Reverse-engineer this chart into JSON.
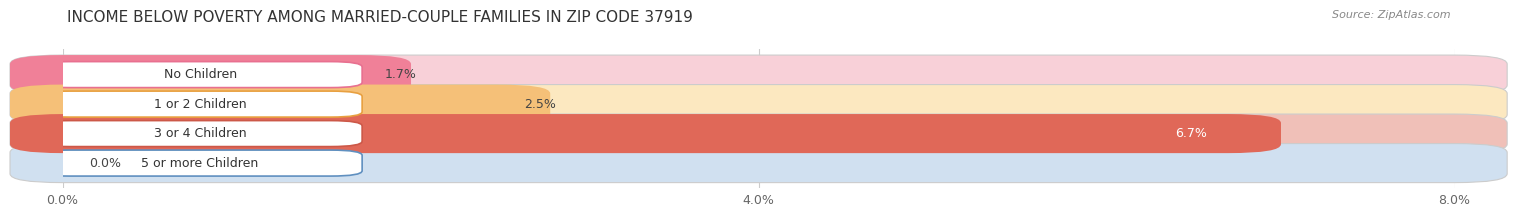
{
  "title": "INCOME BELOW POVERTY AMONG MARRIED-COUPLE FAMILIES IN ZIP CODE 37919",
  "source": "Source: ZipAtlas.com",
  "categories": [
    "No Children",
    "1 or 2 Children",
    "3 or 4 Children",
    "5 or more Children"
  ],
  "values": [
    1.7,
    2.5,
    6.7,
    0.0
  ],
  "bar_colors": [
    "#f08098",
    "#f5c078",
    "#e06858",
    "#98b8d8"
  ],
  "bar_bg_colors": [
    "#f8d0d8",
    "#fce8c0",
    "#f0c0b8",
    "#d0e0f0"
  ],
  "value_text_colors": [
    "#444444",
    "#444444",
    "#ffffff",
    "#444444"
  ],
  "xlim_max": 8.0,
  "xticks": [
    0.0,
    4.0,
    8.0
  ],
  "xtick_labels": [
    "0.0%",
    "4.0%",
    "8.0%"
  ],
  "background_color": "#ffffff",
  "chart_bg_color": "#f5f5f5",
  "title_fontsize": 11,
  "source_fontsize": 8,
  "label_fontsize": 9,
  "value_fontsize": 9,
  "tick_fontsize": 9,
  "bar_height": 0.72,
  "label_box_edgecolors": [
    "#e87090",
    "#e8a040",
    "#cc5848",
    "#6090c0"
  ]
}
